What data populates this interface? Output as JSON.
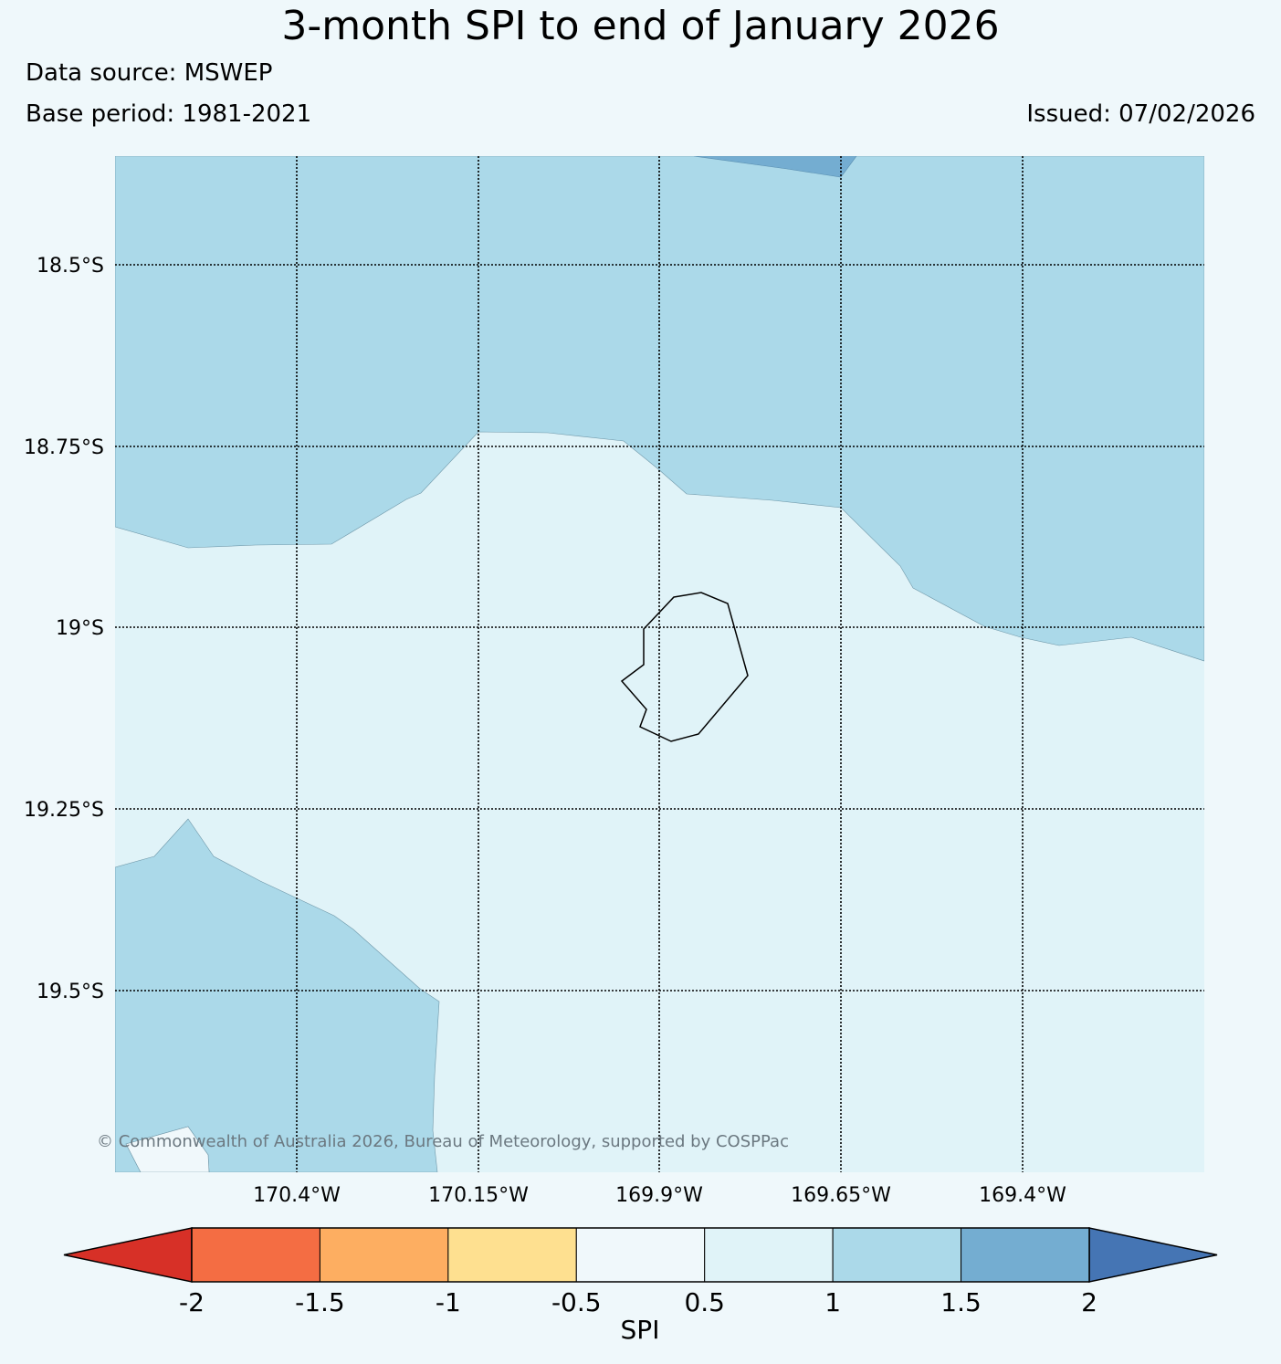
{
  "header": {
    "title": "3-month SPI to end of January 2026",
    "data_source": "Data source: MSWEP",
    "base_period": "Base period: 1981-2021",
    "issued": "Issued: 07/02/2026"
  },
  "map": {
    "lon_labels": [
      "170.4°W",
      "170.15°W",
      "169.9°W",
      "169.65°W",
      "169.4°W"
    ],
    "lat_labels": [
      "18.5°S",
      "18.75°S",
      "19°S",
      "19.25°S",
      "19.5°S"
    ],
    "copyright": "© Commonwealth of Australia 2026, Bureau of Meteorology, supported by COSPPac",
    "colors": {
      "spi_0_5_to_1": "#e0f3f8",
      "spi_1_to_1_5": "#abd9e9",
      "spi_1_5_to_2": "#74add1"
    }
  },
  "colorbar": {
    "label": "SPI",
    "ticks": [
      "-2",
      "-1.5",
      "-1",
      "-0.5",
      "0.5",
      "1",
      "1.5",
      "2"
    ],
    "under_color": "#d73027",
    "over_color": "#4575b4",
    "segments": [
      {
        "range": "-2 to -1.5",
        "color": "#f46d43"
      },
      {
        "range": "-1.5 to -1",
        "color": "#fdae61"
      },
      {
        "range": "-1 to -0.5",
        "color": "#fee090"
      },
      {
        "range": "-0.5 to 0.5",
        "color": "#f0f8fb"
      },
      {
        "range": "0.5 to 1",
        "color": "#e0f3f8"
      },
      {
        "range": "1 to 1.5",
        "color": "#abd9e9"
      },
      {
        "range": "1.5 to 2",
        "color": "#74add1"
      }
    ]
  }
}
